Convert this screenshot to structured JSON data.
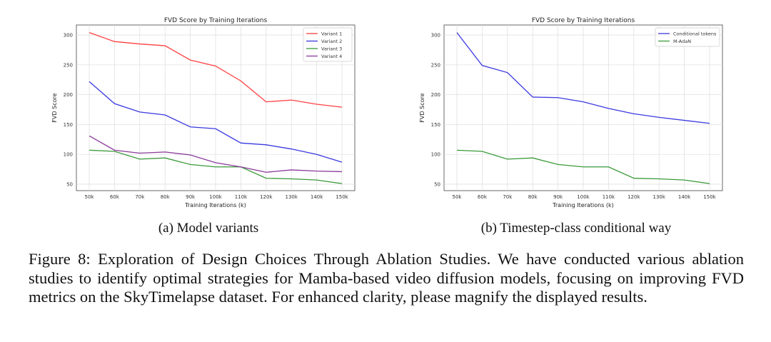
{
  "chart_data": [
    {
      "type": "line",
      "title": "FVD Score by Training Iterations",
      "xlabel": "Training Iterations (k)",
      "ylabel": "FVD Score",
      "categories": [
        "50k",
        "60k",
        "70k",
        "80k",
        "90k",
        "100k",
        "110k",
        "120k",
        "130k",
        "140k",
        "150k"
      ],
      "yticks": [
        50,
        100,
        150,
        200,
        250,
        300
      ],
      "ylim": [
        38,
        312
      ],
      "grid": true,
      "legend": "top-right",
      "series": [
        {
          "name": "Variant 1",
          "color": "#ff4040",
          "values": [
            304,
            289,
            285,
            282,
            258,
            248,
            223,
            188,
            191,
            184,
            179
          ]
        },
        {
          "name": "Variant 2",
          "color": "#3a3ae0",
          "values": [
            222,
            185,
            171,
            166,
            146,
            143,
            119,
            116,
            109,
            100,
            87
          ]
        },
        {
          "name": "Variant 3",
          "color": "#3a9a3a",
          "values": [
            107,
            105,
            92,
            94,
            83,
            79,
            79,
            60,
            59,
            57,
            51
          ]
        },
        {
          "name": "Variant 4",
          "color": "#8a3a9a",
          "values": [
            131,
            107,
            102,
            104,
            99,
            86,
            79,
            70,
            74,
            72,
            71
          ]
        }
      ]
    },
    {
      "type": "line",
      "title": "FVD Score by Training Iterations",
      "xlabel": "Training Iterations (k)",
      "ylabel": "FVD Score",
      "categories": [
        "50k",
        "60k",
        "70k",
        "80k",
        "90k",
        "100k",
        "110k",
        "120k",
        "130k",
        "140k",
        "150k"
      ],
      "yticks": [
        50,
        100,
        150,
        200,
        250,
        300
      ],
      "ylim": [
        38,
        312
      ],
      "grid": true,
      "legend": "top-right",
      "series": [
        {
          "name": "Conditional tokens",
          "color": "#3a3ae0",
          "values": [
            304,
            249,
            237,
            196,
            195,
            188,
            177,
            168,
            162,
            157,
            152
          ]
        },
        {
          "name": "M-AdaN",
          "color": "#3a9a3a",
          "values": [
            107,
            105,
            92,
            94,
            83,
            79,
            79,
            60,
            59,
            57,
            51
          ]
        }
      ]
    }
  ],
  "subcaptions": [
    "(a) Model variants",
    "(b) Timestep-class conditional way"
  ],
  "caption": "Figure 8: Exploration of Design Choices Through Ablation Studies. We have conducted various ablation studies to identify optimal strategies for Mamba-based video diffusion models, focusing on improving FVD metrics on the SkyTimelapse dataset. For enhanced clarity, please magnify the displayed results."
}
